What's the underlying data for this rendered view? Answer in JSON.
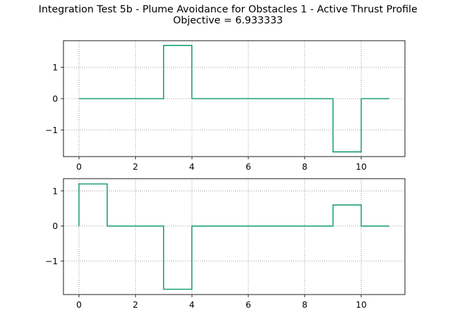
{
  "figure": {
    "title_line1": "Integration Test 5b - Plume Avoidance for Obstacles 1 - Active Thrust Profile",
    "title_line2": "Objective = 6.933333"
  },
  "line_color": "#1a9e77",
  "grid": true,
  "grid_style": "dotted",
  "chart_data": [
    {
      "type": "line",
      "step": true,
      "x": [
        0,
        1,
        2,
        3,
        4,
        5,
        6,
        7,
        8,
        9,
        10,
        11
      ],
      "series": [
        {
          "values": [
            0,
            0,
            0,
            1.7,
            0,
            0,
            0,
            0,
            0,
            -1.7,
            0,
            0
          ]
        }
      ],
      "xlim": [
        -0.55,
        11.55
      ],
      "ylim": [
        -1.85,
        1.85
      ],
      "xticks": [
        0,
        2,
        4,
        6,
        8,
        10
      ],
      "yticks": [
        1,
        0,
        -1
      ],
      "xticklabels": [
        "0",
        "2",
        "4",
        "6",
        "8",
        "10"
      ],
      "yticklabels": [
        "1",
        "0",
        "−1"
      ],
      "title": "",
      "xlabel": "",
      "ylabel": ""
    },
    {
      "type": "line",
      "step": true,
      "x": [
        0,
        1,
        2,
        3,
        4,
        5,
        6,
        7,
        8,
        9,
        10,
        11
      ],
      "series": [
        {
          "values": [
            1.2,
            0,
            0,
            -1.8,
            0,
            0,
            0,
            0,
            0,
            0.6,
            0,
            0
          ]
        }
      ],
      "xlim": [
        -0.55,
        11.55
      ],
      "ylim": [
        -1.95,
        1.35
      ],
      "xticks": [
        0,
        2,
        4,
        6,
        8,
        10
      ],
      "yticks": [
        1,
        0,
        -1
      ],
      "xticklabels": [
        "0",
        "2",
        "4",
        "6",
        "8",
        "10"
      ],
      "yticklabels": [
        "1",
        "0",
        "−1"
      ],
      "title": "",
      "xlabel": "",
      "ylabel": ""
    }
  ]
}
